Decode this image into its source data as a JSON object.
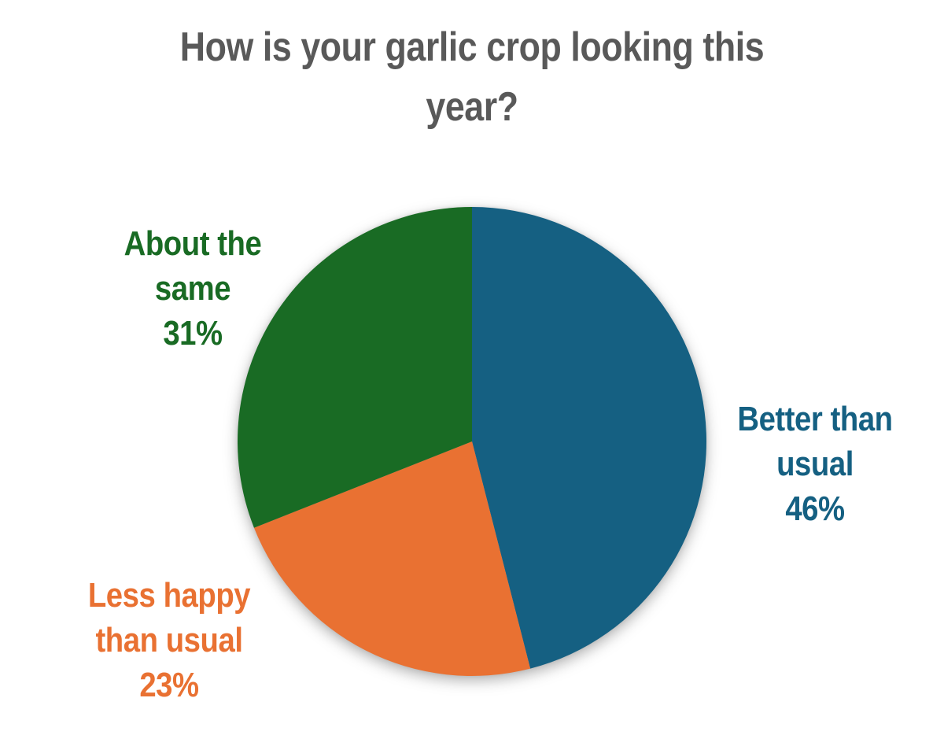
{
  "title": {
    "text": "How is your garlic crop looking this year?",
    "lines": [
      "How is your garlic crop looking this",
      "year?"
    ],
    "color": "#595959"
  },
  "chart_data": {
    "type": "pie",
    "title": "How is your garlic crop looking this year?",
    "start_angle_deg": 0,
    "direction": "clockwise",
    "total_pct": 100,
    "legend_position": "none",
    "labels_style": "outside, colored to match slice",
    "slices": [
      {
        "label": "Better than usual",
        "value_pct": 46,
        "color": "#156082",
        "label_lines": [
          "Better than",
          "usual",
          "46%"
        ],
        "label_position": "right"
      },
      {
        "label": "Less happy than usual",
        "value_pct": 23,
        "color": "#E97132",
        "label_lines": [
          "Less happy",
          "than usual",
          "23%"
        ],
        "label_position": "bottom-left"
      },
      {
        "label": "About the same",
        "value_pct": 31,
        "color": "#196B24",
        "label_lines": [
          "About the",
          "same",
          "31%"
        ],
        "label_position": "top-left"
      }
    ]
  }
}
